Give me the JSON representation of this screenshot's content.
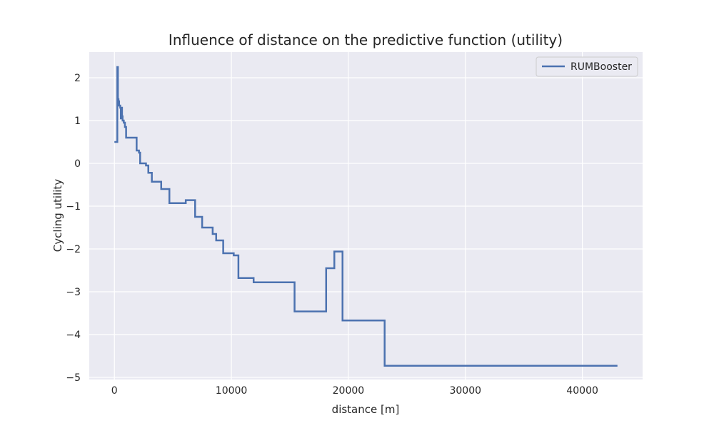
{
  "chart_data": {
    "type": "line",
    "title": "Influence of distance on the predictive function (utility)",
    "xlabel": "distance [m]",
    "ylabel": "Cycling utility",
    "xlim": [
      -2150,
      45150
    ],
    "ylim": [
      -5.05,
      2.6
    ],
    "xticks": [
      0,
      10000,
      20000,
      30000,
      40000
    ],
    "xtick_labels": [
      "0",
      "10000",
      "20000",
      "30000",
      "40000"
    ],
    "yticks": [
      2,
      1,
      0,
      -1,
      -2,
      -3,
      -4,
      -5
    ],
    "ytick_labels": [
      "2",
      "1",
      "0",
      "−1",
      "−2",
      "−3",
      "−4",
      "−5"
    ],
    "grid": true,
    "legend_position": "top-right",
    "step": "post",
    "series": [
      {
        "name": "RUMBooster",
        "color": "#4c72b0",
        "x": [
          0,
          250,
          250,
          300,
          300,
          350,
          350,
          400,
          400,
          500,
          500,
          550,
          550,
          600,
          600,
          650,
          650,
          700,
          700,
          800,
          800,
          900,
          900,
          1000,
          1000,
          1900,
          1900,
          2100,
          2100,
          2200,
          2200,
          2700,
          2700,
          2900,
          2900,
          3200,
          3200,
          4000,
          4000,
          4700,
          4700,
          6100,
          6100,
          6900,
          6900,
          7500,
          7500,
          8400,
          8400,
          8700,
          8700,
          9300,
          9300,
          10200,
          10200,
          10600,
          10600,
          11900,
          11900,
          15400,
          15400,
          18100,
          18100,
          18800,
          18800,
          19500,
          19500,
          23100,
          23100,
          43000
        ],
        "y": [
          0.5,
          0.5,
          2.25,
          2.25,
          1.5,
          1.5,
          1.45,
          1.45,
          1.35,
          1.35,
          1.3,
          1.3,
          1.05,
          1.05,
          1.3,
          1.3,
          1.1,
          1.1,
          1.0,
          1.0,
          0.95,
          0.95,
          0.85,
          0.85,
          0.6,
          0.6,
          0.3,
          0.3,
          0.25,
          0.25,
          0.0,
          0.0,
          -0.05,
          -0.05,
          -0.22,
          -0.22,
          -0.43,
          -0.43,
          -0.6,
          -0.6,
          -0.93,
          -0.93,
          -0.86,
          -0.86,
          -1.25,
          -1.25,
          -1.5,
          -1.5,
          -1.65,
          -1.65,
          -1.8,
          -1.8,
          -2.1,
          -2.1,
          -2.15,
          -2.15,
          -2.68,
          -2.68,
          -2.78,
          -2.78,
          -3.46,
          -3.46,
          -2.45,
          -2.45,
          -2.06,
          -2.06,
          -3.67,
          -3.67,
          -4.73,
          -4.73
        ]
      }
    ]
  }
}
